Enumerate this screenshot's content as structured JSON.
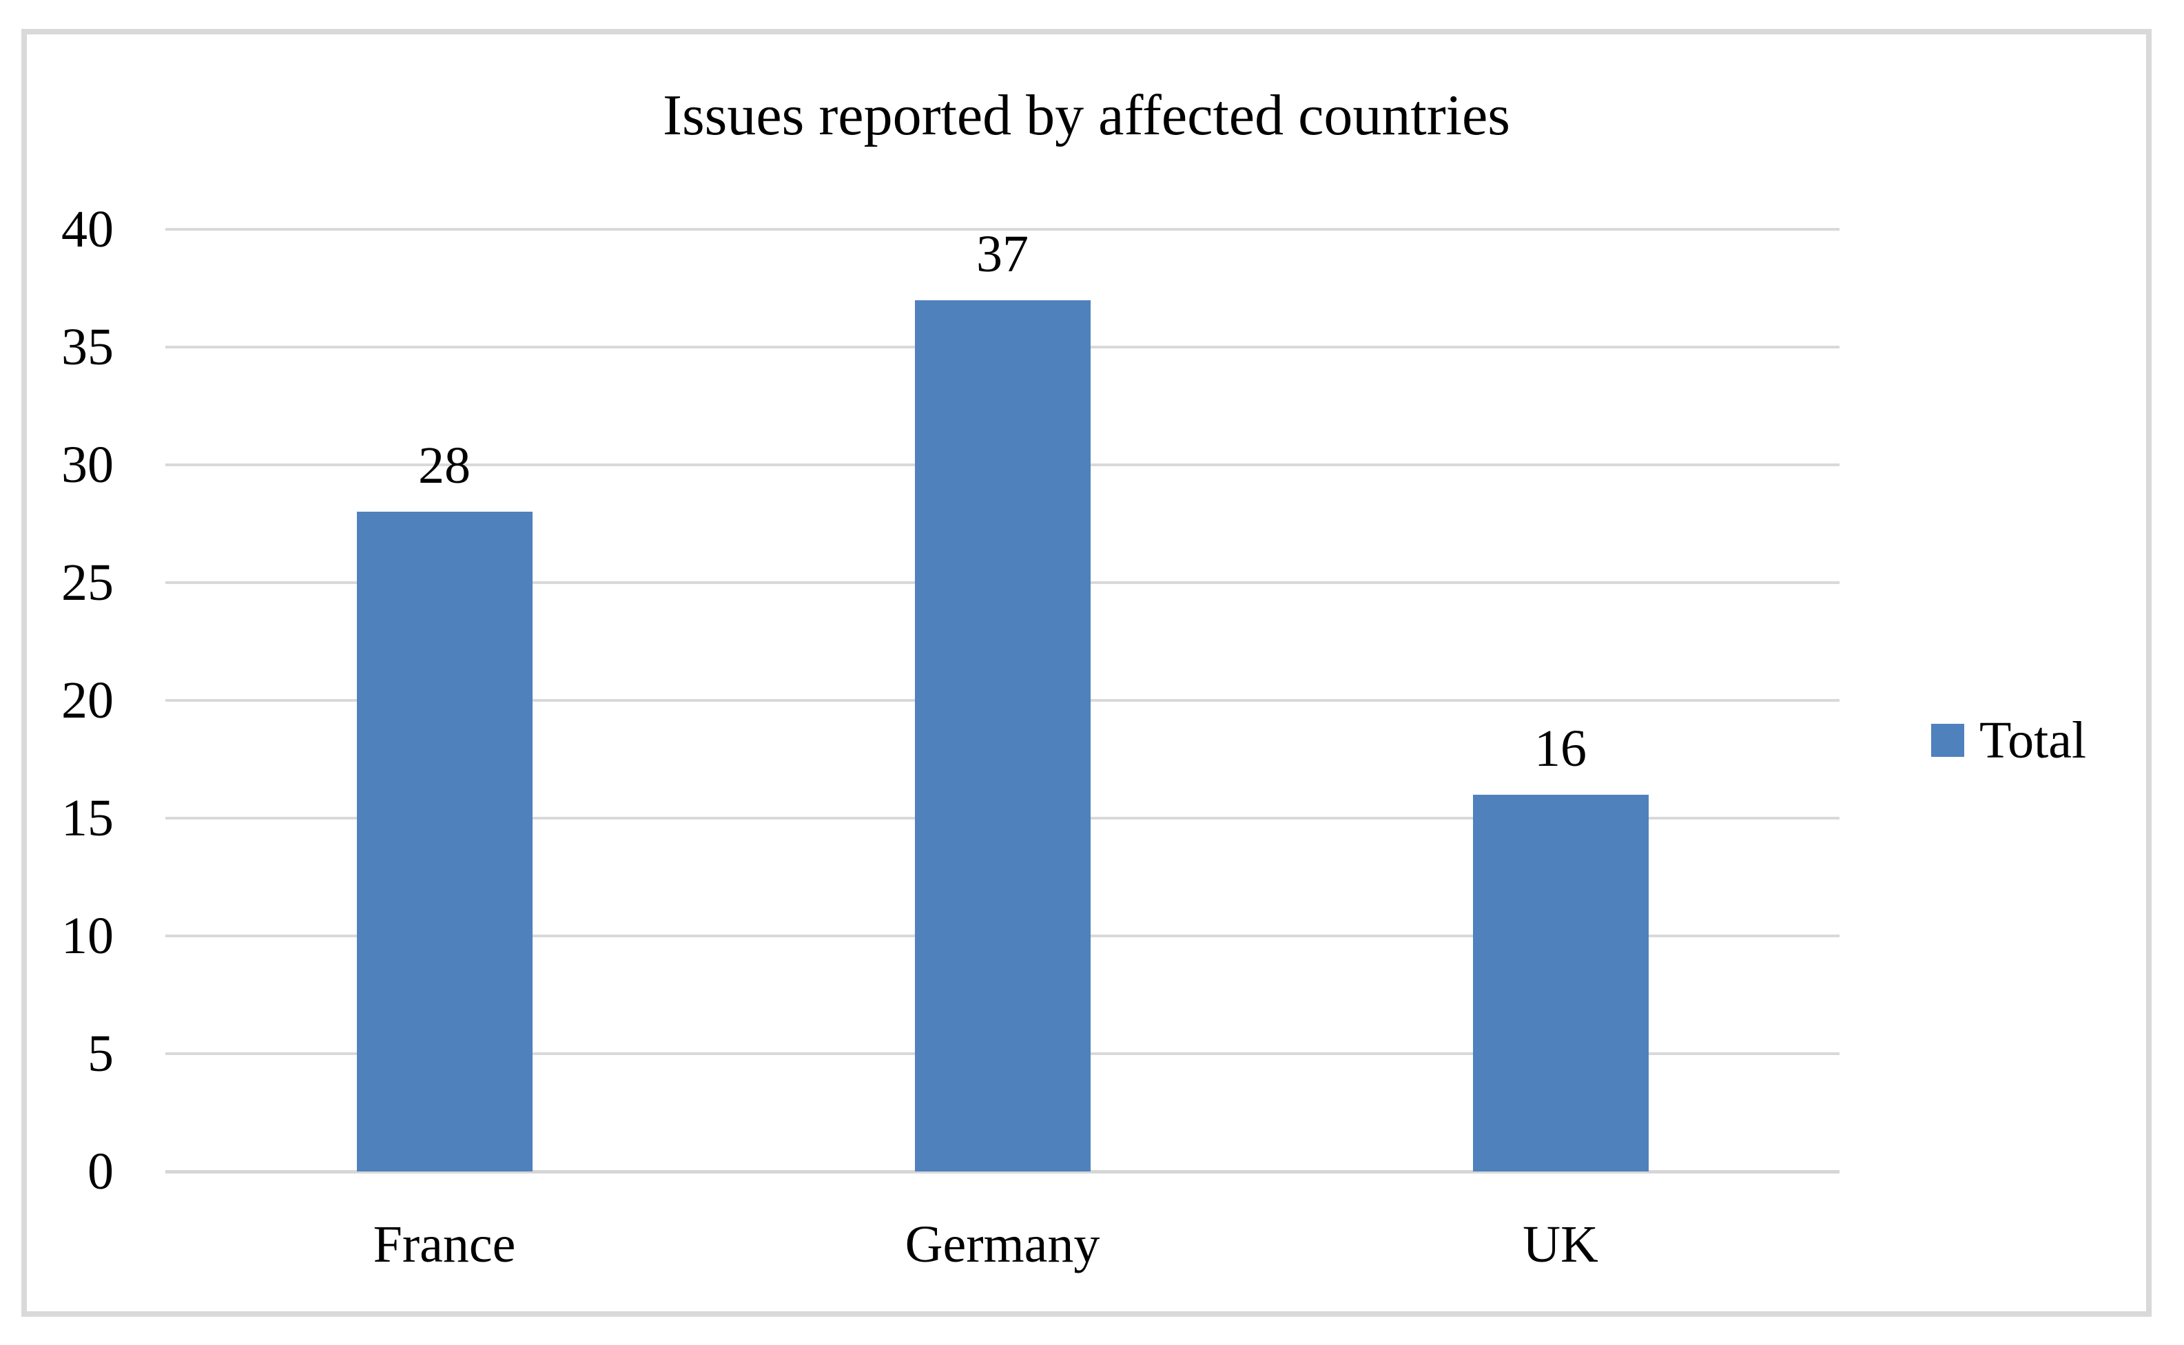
{
  "chart_data": {
    "type": "bar",
    "title": "Issues reported by affected countries",
    "categories": [
      "France",
      "Germany",
      "UK"
    ],
    "series": [
      {
        "name": "Total",
        "values": [
          28,
          37,
          16
        ]
      }
    ],
    "data_labels": [
      "28",
      "37",
      "16"
    ],
    "xlabel": "",
    "ylabel": "",
    "ylim": [
      0,
      40
    ],
    "yticks": [
      0,
      5,
      10,
      15,
      20,
      25,
      30,
      35,
      40
    ],
    "grid": true,
    "legend_position": "right",
    "colors": {
      "bar": "#4F81BD",
      "gridline": "#D9D9D9",
      "axis_line": "#D6D6D6",
      "frame_border": "#D9D9D9",
      "text": "#000000",
      "background": "#FFFFFF"
    }
  },
  "legend": {
    "items": [
      {
        "label": "Total",
        "swatch_color": "#4F81BD"
      }
    ]
  }
}
